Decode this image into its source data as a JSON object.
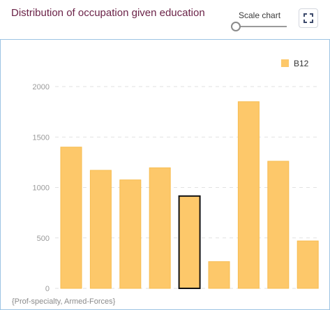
{
  "header": {
    "title": "Distribution of occupation given education",
    "scale_label": "Scale chart",
    "scale_value": 0
  },
  "colors": {
    "title": "#6b2348",
    "bar_fill": "#fdc86a",
    "bar_stroke": "#f7bd52",
    "selected_stroke": "#111111",
    "panel_border": "#9cc4e4",
    "grid": "#e2e2e2"
  },
  "icons": {
    "fullscreen": "fullscreen-expand-icon"
  },
  "chart_data": {
    "type": "bar",
    "series": [
      {
        "name": "B12",
        "values": [
          1400,
          1170,
          1075,
          1195,
          915,
          265,
          1850,
          1260,
          470
        ]
      }
    ],
    "selected_index": 4,
    "visible_category_label": "{Prof-specialty, Armed-Forces}",
    "ylim": [
      0,
      2000
    ],
    "yticks": [
      0,
      500,
      1000,
      1500,
      2000
    ],
    "grid": "horizontal-dashed",
    "legend_position": "top-right"
  }
}
